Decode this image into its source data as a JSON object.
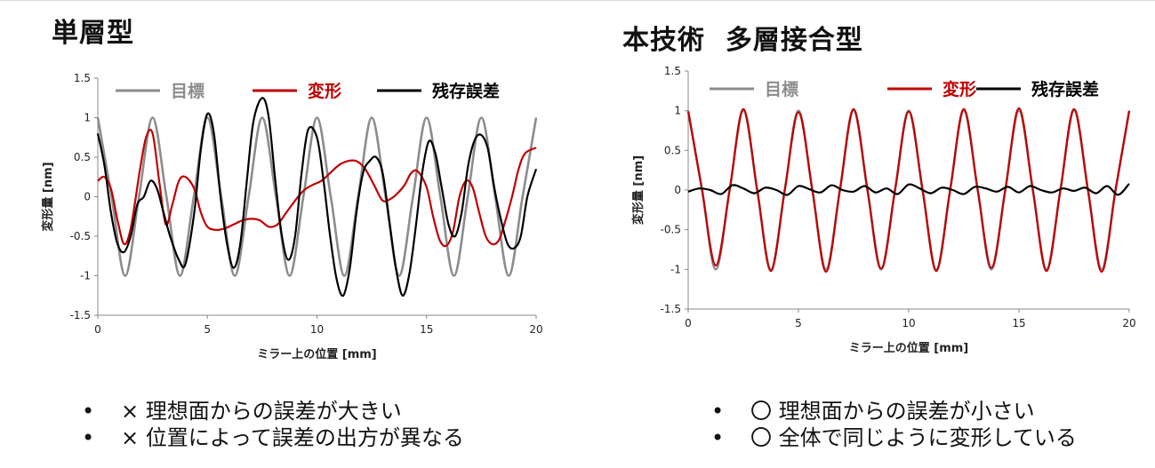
{
  "panels": {
    "left": {
      "title": "単層型",
      "notes": [
        "×  理想面からの誤差が大きい",
        "×  位置によって誤差の出方が異なる"
      ]
    },
    "right": {
      "title": "本技術  多層接合型",
      "notes": [
        "〇  理想面からの誤差が小さい",
        "〇  全体で同じように変形している"
      ]
    }
  },
  "colors": {
    "target": "#8c8c8c",
    "deformation": "#c00000",
    "residual": "#000000"
  },
  "chart_data": [
    {
      "type": "line",
      "title": "",
      "xlabel": "ミラー上の位置 [mm]",
      "ylabel": "変形量 [nm]",
      "xlim": [
        0,
        20
      ],
      "ylim": [
        -1.5,
        1.5
      ],
      "xticks": [
        0,
        5,
        10,
        15,
        20
      ],
      "yticks": [
        1.5,
        1,
        0.5,
        0,
        -0.5,
        -1,
        -1.5
      ],
      "legend": "top",
      "grid": false,
      "series": [
        {
          "name": "目標",
          "x": [
            0,
            0.63,
            1.25,
            1.88,
            2.5,
            3.13,
            3.75,
            4.38,
            5,
            5.63,
            6.25,
            6.88,
            7.5,
            8.13,
            8.75,
            9.38,
            10,
            10.63,
            11.25,
            11.88,
            12.5,
            13.13,
            13.75,
            14.38,
            15,
            15.63,
            16.25,
            16.88,
            17.5,
            18.13,
            18.75,
            19.38,
            20
          ],
          "y": [
            1,
            0,
            -1,
            0,
            1,
            0,
            -1,
            0,
            1,
            0,
            -1,
            0,
            1,
            0,
            -1,
            0,
            1,
            0,
            -1,
            0,
            1,
            0,
            -1,
            0,
            1,
            0,
            -1,
            0,
            1,
            0,
            -1,
            0,
            1
          ]
        },
        {
          "name": "変形",
          "x": [
            0,
            0.3,
            0.6,
            0.9,
            1.2,
            1.5,
            1.9,
            2.2,
            2.5,
            2.8,
            3.1,
            3.4,
            3.7,
            4.0,
            4.4,
            4.7,
            5.0,
            5.4,
            5.8,
            6.2,
            6.6,
            7.0,
            7.4,
            7.8,
            8.2,
            8.6,
            9.0,
            9.4,
            9.8,
            10.2,
            10.6,
            11.0,
            11.4,
            11.8,
            12.2,
            12.6,
            13.0,
            13.4,
            13.7,
            14.0,
            14.3,
            14.6,
            15.0,
            15.3,
            15.6,
            15.9,
            16.2,
            16.5,
            16.8,
            17.1,
            17.4,
            17.7,
            18.0,
            18.3,
            18.6,
            18.9,
            19.2,
            19.5,
            20
          ],
          "y": [
            0.2,
            0.25,
            0.1,
            -0.3,
            -0.6,
            -0.4,
            0.3,
            0.75,
            0.8,
            0.2,
            -0.35,
            -0.1,
            0.2,
            0.25,
            0.1,
            -0.2,
            -0.38,
            -0.42,
            -0.4,
            -0.35,
            -0.3,
            -0.28,
            -0.3,
            -0.38,
            -0.35,
            -0.2,
            -0.05,
            0.08,
            0.15,
            0.2,
            0.3,
            0.4,
            0.45,
            0.45,
            0.35,
            0.15,
            -0.05,
            -0.02,
            0.05,
            0.15,
            0.3,
            0.32,
            0.12,
            -0.25,
            -0.55,
            -0.62,
            -0.45,
            0.0,
            0.2,
            0.12,
            -0.2,
            -0.5,
            -0.6,
            -0.55,
            -0.3,
            0.0,
            0.35,
            0.55,
            0.62
          ]
        },
        {
          "name": "残存誤差",
          "x": [
            0,
            0.3,
            0.6,
            0.9,
            1.2,
            1.5,
            1.8,
            2.1,
            2.4,
            2.7,
            3.0,
            3.3,
            3.7,
            4.0,
            4.4,
            4.7,
            5.0,
            5.3,
            5.6,
            5.9,
            6.2,
            6.5,
            6.8,
            7.1,
            7.5,
            7.8,
            8.1,
            8.4,
            8.7,
            9.0,
            9.3,
            9.6,
            10.0,
            10.3,
            10.6,
            10.9,
            11.2,
            11.5,
            11.8,
            12.1,
            12.4,
            12.7,
            13.0,
            13.3,
            13.6,
            13.9,
            14.2,
            14.5,
            14.8,
            15.1,
            15.4,
            15.7,
            16.0,
            16.3,
            16.6,
            16.9,
            17.2,
            17.5,
            17.8,
            18.1,
            18.4,
            18.7,
            19.0,
            19.3,
            19.6,
            20
          ],
          "y": [
            0.8,
            0.4,
            -0.2,
            -0.6,
            -0.7,
            -0.5,
            -0.1,
            0.0,
            0.2,
            0.1,
            -0.2,
            -0.5,
            -0.8,
            -0.85,
            -0.2,
            0.6,
            1.05,
            0.8,
            0.0,
            -0.6,
            -0.9,
            -0.6,
            0.2,
            0.95,
            1.25,
            1.0,
            0.2,
            -0.5,
            -0.8,
            -0.5,
            0.3,
            0.85,
            0.75,
            0.2,
            -0.5,
            -1.05,
            -1.25,
            -0.9,
            -0.2,
            0.3,
            0.45,
            0.5,
            0.3,
            -0.3,
            -0.9,
            -1.25,
            -1.0,
            -0.4,
            0.3,
            0.7,
            0.55,
            0.1,
            -0.35,
            -0.5,
            -0.2,
            0.4,
            0.72,
            0.78,
            0.6,
            0.1,
            -0.3,
            -0.6,
            -0.65,
            -0.5,
            0.0,
            0.35
          ]
        }
      ]
    },
    {
      "type": "line",
      "title": "",
      "xlabel": "ミラー上の位置 [mm]",
      "ylabel": "変形量 [nm]",
      "xlim": [
        0,
        20
      ],
      "ylim": [
        -1.5,
        1.5
      ],
      "xticks": [
        0,
        5,
        10,
        15,
        20
      ],
      "yticks": [
        1.5,
        1,
        0.5,
        0,
        -0.5,
        -1,
        -1.5
      ],
      "legend": "top",
      "grid": false,
      "series": [
        {
          "name": "目標",
          "x": [
            0,
            0.63,
            1.25,
            1.88,
            2.5,
            3.13,
            3.75,
            4.38,
            5,
            5.63,
            6.25,
            6.88,
            7.5,
            8.13,
            8.75,
            9.38,
            10,
            10.63,
            11.25,
            11.88,
            12.5,
            13.13,
            13.75,
            14.38,
            15,
            15.63,
            16.25,
            16.88,
            17.5,
            18.13,
            18.75,
            19.38,
            20
          ],
          "y": [
            1,
            0,
            -1,
            0,
            1,
            0,
            -1,
            0,
            1,
            0,
            -1,
            0,
            1,
            0,
            -1,
            0,
            1,
            0,
            -1,
            0,
            1,
            0,
            -1,
            0,
            1,
            0,
            -1,
            0,
            1,
            0,
            -1,
            0,
            1
          ]
        },
        {
          "name": "変形",
          "x": [
            0,
            0.63,
            1.25,
            1.88,
            2.5,
            3.13,
            3.75,
            4.38,
            5,
            5.63,
            6.25,
            6.88,
            7.5,
            8.13,
            8.75,
            9.38,
            10,
            10.63,
            11.25,
            11.88,
            12.5,
            13.13,
            13.75,
            14.38,
            15,
            15.63,
            16.25,
            16.88,
            17.5,
            18.13,
            18.75,
            19.38,
            20
          ],
          "y": [
            0.99,
            0.0,
            -0.95,
            0.0,
            1.02,
            0.0,
            -1.02,
            0.0,
            0.98,
            0.0,
            -1.03,
            0.0,
            1.02,
            0.0,
            -0.99,
            0.0,
            0.99,
            0.0,
            -1.02,
            0.0,
            1.02,
            0.0,
            -0.98,
            0.0,
            1.03,
            0.0,
            -1.02,
            0.0,
            1.02,
            0.0,
            -1.03,
            0.0,
            1.0
          ]
        },
        {
          "name": "残存誤差",
          "x": [
            0,
            0.5,
            1,
            1.5,
            2,
            2.5,
            3,
            3.5,
            4,
            4.5,
            5,
            5.5,
            6,
            6.5,
            7,
            7.5,
            8,
            8.5,
            9,
            9.5,
            10,
            10.5,
            11,
            11.5,
            12,
            12.5,
            13,
            13.5,
            14,
            14.5,
            15,
            15.5,
            16,
            16.5,
            17,
            17.5,
            18,
            18.5,
            19,
            19.5,
            20
          ],
          "y": [
            -0.02,
            0.02,
            0.0,
            -0.05,
            0.06,
            0.02,
            -0.04,
            0.03,
            0.0,
            -0.06,
            0.05,
            0.01,
            -0.03,
            0.06,
            0.0,
            -0.02,
            0.05,
            -0.03,
            0.02,
            -0.05,
            0.07,
            0.02,
            -0.04,
            0.03,
            0.0,
            -0.05,
            0.04,
            0.02,
            -0.02,
            0.04,
            -0.03,
            0.05,
            0.0,
            -0.03,
            0.02,
            -0.01,
            0.03,
            -0.04,
            0.05,
            -0.06,
            0.08
          ]
        }
      ]
    }
  ]
}
